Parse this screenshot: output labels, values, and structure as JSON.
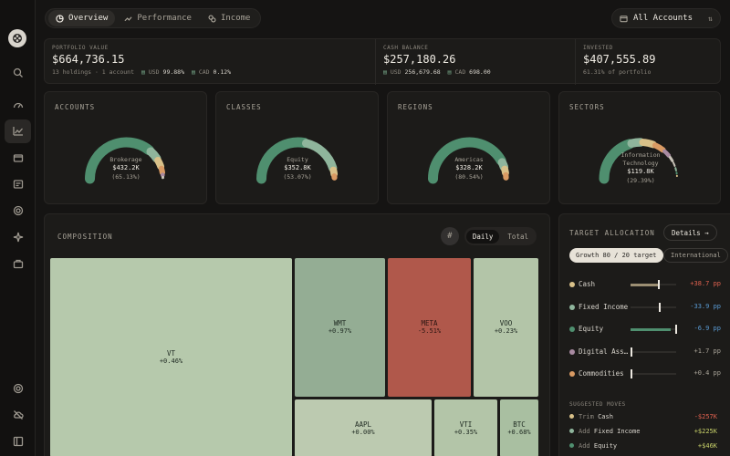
{
  "colors": {
    "green": "#4f8f6f",
    "sage": "#8fb59c",
    "sand": "#d9c189",
    "tan": "#d99a63",
    "mauve": "#a88aa1",
    "gray": "#c8c3b8",
    "red": "#b0584b",
    "positive": "#c9d36a",
    "negative": "#e0614f",
    "negative_blue": "#5a9bd4"
  },
  "sidebar": {
    "icons": [
      "search-icon",
      "gauge-icon",
      "chart-icon",
      "wallet-icon",
      "receipt-icon",
      "target-icon",
      "sparkle-icon",
      "briefcase-icon",
      "settings-icon",
      "cloud-off-icon",
      "panel-icon"
    ]
  },
  "nav": {
    "tabs": [
      {
        "label": "Overview",
        "icon": "pie-icon"
      },
      {
        "label": "Performance",
        "icon": "trend-icon"
      },
      {
        "label": "Income",
        "icon": "coins-icon"
      }
    ],
    "accounts_label": "All Accounts"
  },
  "summary": {
    "portfolio": {
      "label": "PORTFOLIO VALUE",
      "value": "$664,736.15",
      "holdings": "13 holdings · 1 account",
      "usd_label": "USD",
      "usd_pct": "99.88%",
      "cad_label": "CAD",
      "cad_pct": "0.12%"
    },
    "cash": {
      "label": "CASH BALANCE",
      "value": "$257,180.26",
      "usd_label": "USD",
      "usd_value": "256,679.68",
      "cad_label": "CAD",
      "cad_value": "698.00"
    },
    "invested": {
      "label": "INVESTED",
      "value": "$407,555.89",
      "sub": "61.31% of portfolio"
    }
  },
  "gauges": [
    {
      "title": "ACCOUNTS",
      "center_name": "Brokerage",
      "center_value": "$432.2K",
      "center_pct": "(65.13%)",
      "segments": [
        {
          "fraction": 0.6513,
          "color": "#4f8f6f"
        },
        {
          "fraction": 0.09,
          "color": "#8fb59c"
        },
        {
          "fraction": 0.07,
          "color": "#d9c189"
        },
        {
          "fraction": 0.05,
          "color": "#d99a63"
        },
        {
          "fraction": 0.02,
          "color": "#a88aa1"
        },
        {
          "fraction": 0.02,
          "color": "#c8c3b8"
        }
      ]
    },
    {
      "title": "CLASSES",
      "center_name": "Equity",
      "center_value": "$352.8K",
      "center_pct": "(53.07%)",
      "segments": [
        {
          "fraction": 0.5307,
          "color": "#4f8f6f"
        },
        {
          "fraction": 0.33,
          "color": "#8fb59c"
        },
        {
          "fraction": 0.05,
          "color": "#d9c189"
        },
        {
          "fraction": 0.03,
          "color": "#d99a63"
        }
      ]
    },
    {
      "title": "REGIONS",
      "center_name": "Americas",
      "center_value": "$328.2K",
      "center_pct": "(80.54%)",
      "segments": [
        {
          "fraction": 0.8054,
          "color": "#4f8f6f"
        },
        {
          "fraction": 0.06,
          "color": "#8fb59c"
        },
        {
          "fraction": 0.05,
          "color": "#d9c189"
        },
        {
          "fraction": 0.04,
          "color": "#d99a63"
        }
      ]
    },
    {
      "title": "SECTORS",
      "center_name": "Information",
      "center_name2": "Technology",
      "center_value": "$119.8K",
      "center_pct": "(29.39%)",
      "segments": [
        {
          "fraction": 0.2939,
          "color": "#4f8f6f"
        },
        {
          "fraction": 0.07,
          "color": "#8fb59c"
        },
        {
          "fraction": 0.08,
          "color": "#d9c189"
        },
        {
          "fraction": 0.07,
          "color": "#d99a63"
        },
        {
          "fraction": 0.05,
          "color": "#a88aa1"
        },
        {
          "fraction": 0.04,
          "color": "#c8c3b8"
        },
        {
          "fraction": 0.035,
          "color": "#c8c3b8"
        },
        {
          "fraction": 0.03,
          "color": "#8fb59c"
        },
        {
          "fraction": 0.02,
          "color": "#4f8f6f"
        },
        {
          "fraction": 0.015,
          "color": "#d9c189"
        },
        {
          "fraction": 0.01,
          "color": "#c8c3b8"
        }
      ]
    }
  ],
  "composition": {
    "title": "COMPOSITION",
    "hash": "#",
    "toggle": [
      "Daily",
      "Total"
    ],
    "tiles": [
      {
        "ticker": "VT",
        "change": "+0.46%",
        "color": "#b6c9ac"
      },
      {
        "ticker": "WMT",
        "change": "+0.97%",
        "color": "#94ad94"
      },
      {
        "ticker": "META",
        "change": "-5.51%",
        "color": "#b0584b"
      },
      {
        "ticker": "VOO",
        "change": "+0.23%",
        "color": "#b3c5a8"
      },
      {
        "ticker": "AAPL",
        "change": "+0.00%",
        "color": "#bccab0"
      },
      {
        "ticker": "VTI",
        "change": "+0.35%",
        "color": "#b3c5a8"
      },
      {
        "ticker": "BTC",
        "change": "+0.68%",
        "color": "#a9bfa1"
      }
    ]
  },
  "target": {
    "title": "TARGET ALLOCATION",
    "details": "Details →",
    "pill_on": "Growth 80 / 20 target",
    "pill_off": "International",
    "rows": [
      {
        "name": "Cash",
        "dot": "#d9c189",
        "fill": 0.6,
        "fill_color": "#9c8f73",
        "target": 0.6,
        "delta": "+38.7 pp",
        "delta_color": "#e0614f"
      },
      {
        "name": "Fixed Income",
        "dot": "#8fb59c",
        "fill": 0.0,
        "fill_color": "#8fb59c",
        "target": 0.62,
        "delta": "-33.9 pp",
        "delta_color": "#5a9bd4"
      },
      {
        "name": "Equity",
        "dot": "#4f8f6f",
        "fill": 0.88,
        "fill_color": "#4f8f6f",
        "target": 0.98,
        "delta": "-6.9 pp",
        "delta_color": "#5a9bd4"
      },
      {
        "name": "Digital Ass…",
        "dot": "#a88aa1",
        "fill": 0.0,
        "fill_color": "#a88aa1",
        "target": 0.0,
        "delta": "+1.7 pp",
        "delta_color": "#a8a398"
      },
      {
        "name": "Commodities",
        "dot": "#d99a63",
        "fill": 0.0,
        "fill_color": "#d99a63",
        "target": 0.0,
        "delta": "+0.4 pp",
        "delta_color": "#a8a398"
      }
    ],
    "moves_title": "SUGGESTED MOVES",
    "moves": [
      {
        "verb": "Trim",
        "name": "Cash",
        "amount": "-$257K",
        "dot": "#d9c189",
        "color": "#e0614f"
      },
      {
        "verb": "Add",
        "name": "Fixed Income",
        "amount": "+$225K",
        "dot": "#8fb59c",
        "color": "#c9d36a"
      },
      {
        "verb": "Add",
        "name": "Equity",
        "amount": "+$46K",
        "dot": "#4f8f6f",
        "color": "#c9d36a"
      }
    ]
  }
}
